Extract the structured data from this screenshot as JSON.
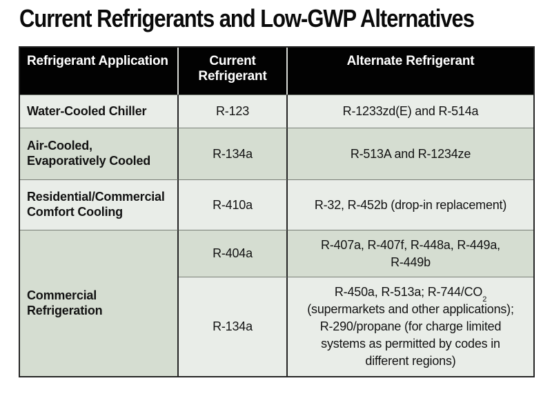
{
  "title": "Current Refrigerants and Low-GWP Alternatives",
  "table": {
    "columns": [
      {
        "label": "Refrigerant Application"
      },
      {
        "label": "Current\nRefrigerant"
      },
      {
        "label": "Alternate Refrigerant"
      }
    ],
    "rows": [
      {
        "application": "Water-Cooled Chiller",
        "current": "R-123",
        "alternate": "R-1233zd(E) and R-514a"
      },
      {
        "application": "Air-Cooled,\nEvaporatively Cooled",
        "current": "R-134a",
        "alternate": "R-513A and R-1234ze"
      },
      {
        "application": "Residential/Commercial\nComfort Cooling",
        "current": "R-410a",
        "alternate": "R-32, R-452b (drop-in replacement)"
      },
      {
        "application": "Commercial\nRefrigeration",
        "sub_rows": [
          {
            "current": "R-404a",
            "alternate": "R-407a, R-407f, R-448a, R-449a,\nR-449b"
          },
          {
            "current": "R-134a",
            "alternate_line1_prefix": "R-450a, R-513a; R-744/CO",
            "alternate_line1_subscript": "2",
            "alternate_rest": "(supermarkets and other applications);\nR-290/propane (for charge limited\nsystems as permitted by codes in\ndifferent regions)"
          }
        ]
      }
    ]
  },
  "colors": {
    "header_bg": "#020202",
    "header_text": "#ffffff",
    "row_light": "#e9ede8",
    "row_dark": "#d5ddd1",
    "border_dark": "#242424",
    "border_row_divider": "#767c74",
    "header_column_divider": "#d8dbd6",
    "title_text": "#0a0a0a",
    "cell_text": "#121212"
  }
}
